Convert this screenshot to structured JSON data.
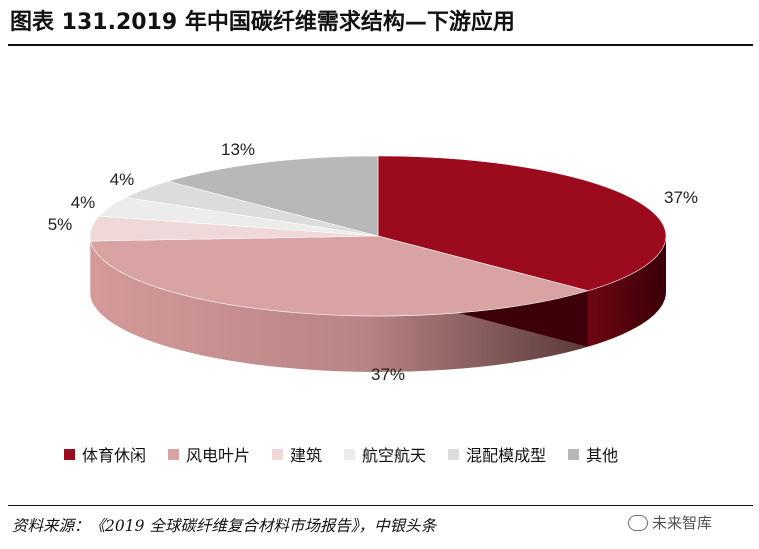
{
  "header": {
    "title": "图表 131.2019 年中国碳纤维需求结构—下游应用"
  },
  "chart_data": {
    "type": "pie",
    "title": "",
    "slices": [
      {
        "label": "体育休闲",
        "value": 37,
        "value_label": "37%",
        "color": "#9b0a1d"
      },
      {
        "label": "风电叶片",
        "value": 37,
        "value_label": "37%",
        "color": "#d9a3a3"
      },
      {
        "label": "建筑",
        "value": 5,
        "value_label": "5%",
        "color": "#f0d8d8"
      },
      {
        "label": "航空航天",
        "value": 4,
        "value_label": "4%",
        "color": "#ececec"
      },
      {
        "label": "混配模成型",
        "value": 4,
        "value_label": "4%",
        "color": "#dcdcdc"
      },
      {
        "label": "其他",
        "value": 13,
        "value_label": "13%",
        "color": "#b8b8b8"
      }
    ],
    "legend_position": "bottom"
  },
  "footer": {
    "source": "资料来源：《2019 全球碳纤维复合材料市场报告》，中银头条",
    "watermark": "未来智库"
  }
}
